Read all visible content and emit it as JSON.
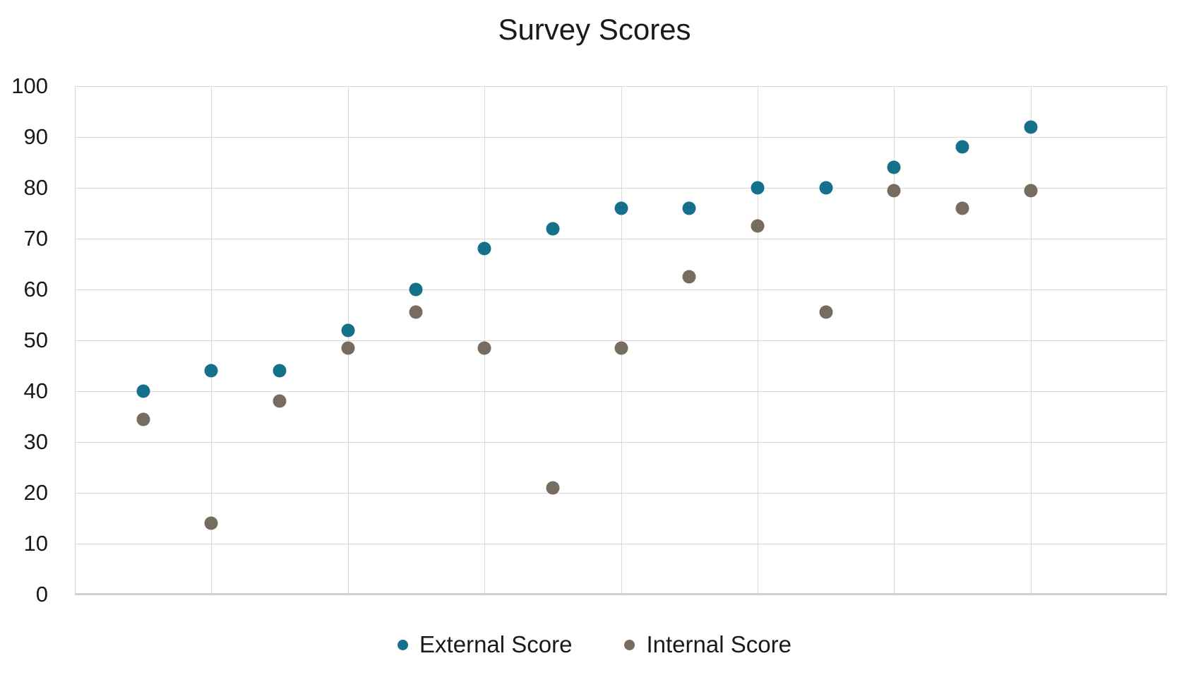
{
  "chart_data": {
    "type": "scatter",
    "title": "Survey Scores",
    "x": [
      1,
      2,
      3,
      4,
      5,
      6,
      7,
      8,
      9,
      10,
      11,
      12,
      13,
      14
    ],
    "series": [
      {
        "name": "External Score",
        "color": "#15708C",
        "values": [
          40,
          44,
          44,
          52,
          60,
          68,
          72,
          76,
          76,
          80,
          80,
          84,
          88,
          92
        ]
      },
      {
        "name": "Internal Score",
        "color": "#766C60",
        "values": [
          34.5,
          14,
          38,
          48.5,
          55.5,
          48.5,
          21,
          48.5,
          62.5,
          72.5,
          55.5,
          79.5,
          76,
          79.5
        ]
      }
    ],
    "xlim": [
      0,
      16
    ],
    "ylim": [
      0,
      100
    ],
    "yticks": [
      0,
      10,
      20,
      30,
      40,
      50,
      60,
      70,
      80,
      90,
      100
    ],
    "ytick_labels": [
      "0",
      "10",
      "20",
      "30",
      "40",
      "50",
      "60",
      "70",
      "80",
      "90",
      "100"
    ],
    "x_gridline_step": 2,
    "xlabel": "",
    "ylabel": "",
    "grid": "on",
    "legend_position": "bottom",
    "colors": {
      "gridline": "#D9D9D9",
      "axis_line": "#CFCFCF",
      "text": "#1A1A1A",
      "background": "#FFFFFF"
    }
  }
}
